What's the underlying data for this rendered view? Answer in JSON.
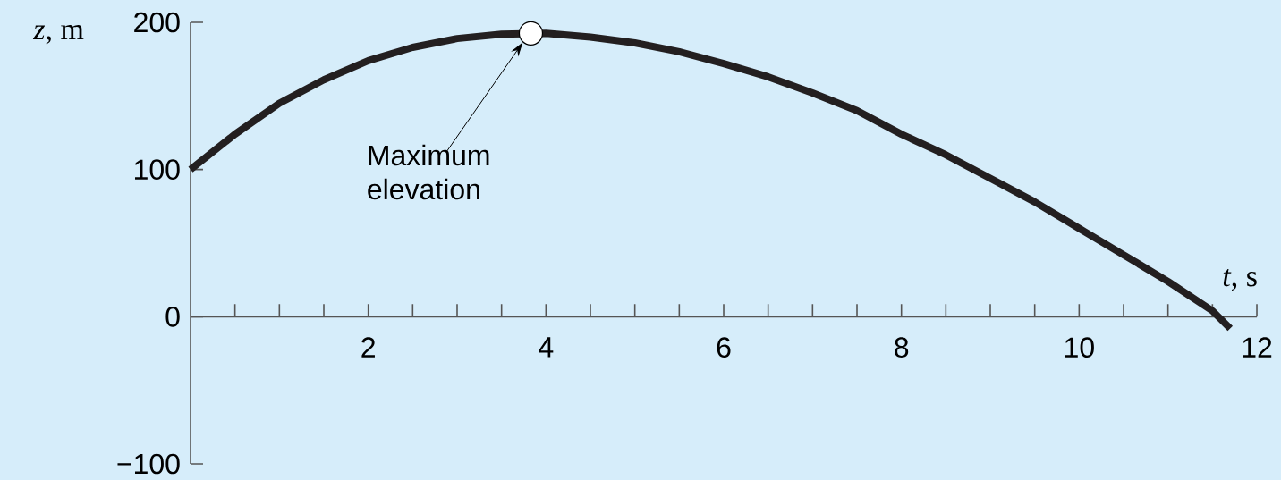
{
  "chart_data": {
    "type": "line",
    "xlabel": "*t*, s",
    "ylabel": "*z*, m",
    "x": [
      0,
      0.5,
      1,
      1.5,
      2,
      2.5,
      3,
      3.5,
      4,
      4.5,
      5,
      5.5,
      6,
      6.5,
      7,
      7.5,
      8,
      8.5,
      9,
      9.5,
      10,
      10.5,
      11,
      11.5,
      11.7
    ],
    "series": [
      {
        "type": "line",
        "color": "#231f20",
        "values": [
          100,
          124,
          145,
          161,
          174,
          183,
          189,
          192,
          192.5,
          190,
          186,
          180,
          172,
          163,
          152,
          140,
          124,
          110,
          94,
          78,
          60,
          42,
          24,
          4,
          -8
        ]
      },
      {
        "type": "scatter",
        "color": "#ffffff",
        "x": [
          3.83
        ],
        "values": [
          192.5
        ],
        "marker": "circle"
      }
    ],
    "annotations": [
      "Maximum elevation"
    ],
    "xlim": [
      0,
      12
    ],
    "ylim": [
      -100,
      200
    ],
    "xticks": [
      {
        "value": 0,
        "label": null
      },
      2,
      4,
      6,
      8,
      10,
      12
    ],
    "yticks": [
      {
        "value": -100,
        "label": "−100"
      },
      0,
      100,
      200
    ],
    "grid": false
  }
}
